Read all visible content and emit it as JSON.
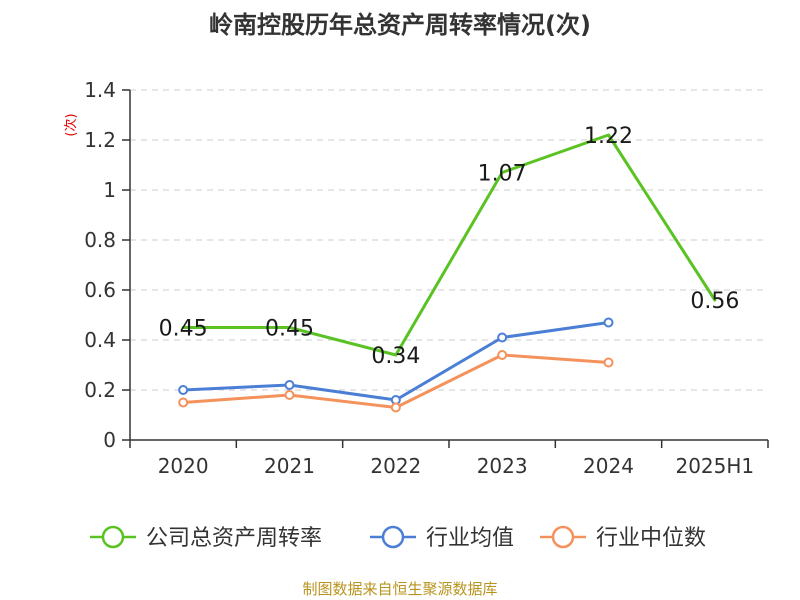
{
  "chart_data": {
    "type": "line",
    "title": "岭南控股历年总资产周转率情况(次)",
    "ylabel": "(次)",
    "xlabel": "",
    "categories": [
      "2020",
      "2021",
      "2022",
      "2023",
      "2024",
      "2025H1"
    ],
    "ylim": [
      0,
      1.4
    ],
    "yticks": [
      "0",
      "0.2",
      "0.4",
      "0.6",
      "0.8",
      "1",
      "1.2",
      "1.4"
    ],
    "grid": true,
    "legend_position": "bottom",
    "series": [
      {
        "name": "公司总资产周转率",
        "color": "#5ac323",
        "values": [
          0.45,
          0.45,
          0.34,
          1.07,
          1.22,
          0.56
        ],
        "labels": [
          "0.45",
          "0.45",
          "0.34",
          "1.07",
          "1.22",
          "0.56"
        ]
      },
      {
        "name": "行业均值",
        "color": "#4b7fd6",
        "values": [
          0.2,
          0.22,
          0.16,
          0.41,
          0.47,
          null
        ]
      },
      {
        "name": "行业中位数",
        "color": "#f5925c",
        "values": [
          0.15,
          0.18,
          0.13,
          0.34,
          0.31,
          null
        ]
      }
    ]
  },
  "source": "制图数据来自恒生聚源数据库"
}
